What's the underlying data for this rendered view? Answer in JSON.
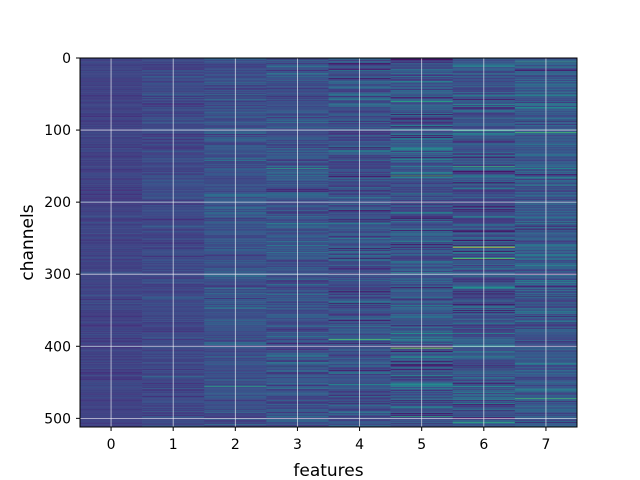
{
  "chart_data": {
    "type": "heatmap",
    "title": "",
    "xlabel": "features",
    "ylabel": "channels",
    "x_categories": [
      "0",
      "1",
      "2",
      "3",
      "4",
      "5",
      "6",
      "7"
    ],
    "x_range": [
      -0.5,
      7.5
    ],
    "y_range": [
      512,
      0
    ],
    "y_ticks": [
      0,
      100,
      200,
      300,
      400,
      500
    ],
    "y_inverted": true,
    "rows": 512,
    "columns": 8,
    "colormap": "viridis",
    "value_range": [
      0,
      1
    ],
    "grid": true,
    "legend": "none",
    "column_profiles": [
      {
        "feature": "0",
        "mean": 0.2,
        "spread": 0.05
      },
      {
        "feature": "1",
        "mean": 0.22,
        "spread": 0.07
      },
      {
        "feature": "2",
        "mean": 0.25,
        "spread": 0.1
      },
      {
        "feature": "3",
        "mean": 0.26,
        "spread": 0.12
      },
      {
        "feature": "4",
        "mean": 0.25,
        "spread": 0.15
      },
      {
        "feature": "5",
        "mean": 0.27,
        "spread": 0.17
      },
      {
        "feature": "6",
        "mean": 0.26,
        "spread": 0.18
      },
      {
        "feature": "7",
        "mean": 0.28,
        "spread": 0.16
      }
    ],
    "bright_cells": [
      {
        "feature": "6",
        "channel": 262,
        "value": 0.95
      },
      {
        "feature": "5",
        "channel": 402,
        "value": 0.85
      },
      {
        "feature": "6",
        "channel": 278,
        "value": 0.78
      },
      {
        "feature": "5",
        "channel": 163,
        "value": 0.7
      },
      {
        "feature": "5",
        "channel": 60,
        "value": 0.62
      },
      {
        "feature": "6",
        "channel": 150,
        "value": 0.65
      },
      {
        "feature": "7",
        "channel": 103,
        "value": 0.7
      },
      {
        "feature": "4",
        "channel": 390,
        "value": 0.72
      },
      {
        "feature": "6",
        "channel": 100,
        "value": 0.6
      },
      {
        "feature": "7",
        "channel": 472,
        "value": 0.68
      },
      {
        "feature": "2",
        "channel": 455,
        "value": 0.6
      },
      {
        "feature": "3",
        "channel": 153,
        "value": 0.58
      },
      {
        "feature": "5",
        "channel": 497,
        "value": 0.62
      },
      {
        "feature": "6",
        "channel": 505,
        "value": 0.64
      },
      {
        "feature": "7",
        "channel": 5,
        "value": 0.6
      }
    ],
    "colors": {
      "grid": "#ffffff",
      "axes": "#000000",
      "background": "#ffffff"
    }
  }
}
